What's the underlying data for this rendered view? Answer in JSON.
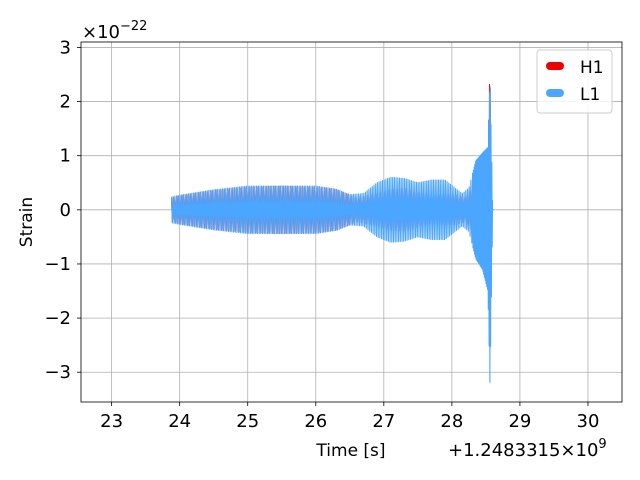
{
  "chart_data": {
    "type": "line",
    "xlabel": "Time [s]",
    "ylabel": "Strain",
    "x_offset_label": "+1.2483315×10",
    "x_offset_exp": "9",
    "y_scale_label": "×10",
    "y_scale_exp": "−22",
    "xlim": [
      22.55,
      30.5
    ],
    "ylim": [
      -3.55,
      3.1
    ],
    "xticks": [
      23,
      24,
      25,
      26,
      27,
      28,
      29,
      30
    ],
    "xtick_labels": [
      "23",
      "24",
      "25",
      "26",
      "27",
      "28",
      "29",
      "30"
    ],
    "yticks": [
      -3,
      -2,
      -1,
      0,
      1,
      2,
      3
    ],
    "ytick_labels": [
      "−3",
      "−2",
      "−1",
      "0",
      "1",
      "2",
      "3"
    ],
    "grid": true,
    "legend_position": "top-right",
    "series": [
      {
        "name": "H1",
        "color": "#ee0000",
        "envelope_x": [
          23.88,
          24.0,
          24.5,
          25.0,
          25.5,
          26.0,
          26.3,
          26.6,
          26.9,
          27.1,
          27.3,
          27.5,
          27.7,
          27.9,
          28.05,
          28.2,
          28.35,
          28.45,
          28.53,
          28.56,
          28.58
        ],
        "envelope_upper": [
          0.22,
          0.26,
          0.36,
          0.42,
          0.44,
          0.42,
          0.38,
          0.22,
          0.3,
          0.38,
          0.4,
          0.32,
          0.26,
          0.28,
          0.28,
          0.22,
          0.55,
          0.8,
          1.0,
          2.75,
          0.02
        ],
        "envelope_lower": [
          -0.22,
          -0.26,
          -0.36,
          -0.42,
          -0.44,
          -0.42,
          -0.38,
          -0.22,
          -0.3,
          -0.38,
          -0.4,
          -0.32,
          -0.26,
          -0.28,
          -0.28,
          -0.22,
          -0.55,
          -0.9,
          -1.3,
          -2.0,
          -0.02
        ]
      },
      {
        "name": "L1",
        "color": "#4ba6ff",
        "envelope_x": [
          23.88,
          24.0,
          24.5,
          25.0,
          25.5,
          26.0,
          26.3,
          26.5,
          26.7,
          26.9,
          27.1,
          27.3,
          27.5,
          27.7,
          27.9,
          28.05,
          28.15,
          28.25,
          28.35,
          28.45,
          28.53,
          28.56,
          28.6
        ],
        "envelope_upper": [
          0.24,
          0.27,
          0.37,
          0.44,
          0.44,
          0.44,
          0.38,
          0.28,
          0.3,
          0.5,
          0.6,
          0.58,
          0.5,
          0.55,
          0.55,
          0.4,
          0.3,
          0.4,
          0.9,
          1.05,
          1.15,
          2.5,
          0.02
        ],
        "envelope_lower": [
          -0.24,
          -0.27,
          -0.37,
          -0.44,
          -0.44,
          -0.44,
          -0.38,
          -0.28,
          -0.3,
          -0.5,
          -0.6,
          -0.58,
          -0.5,
          -0.55,
          -0.55,
          -0.4,
          -0.3,
          -0.4,
          -0.9,
          -1.1,
          -1.5,
          -3.3,
          -0.02
        ]
      }
    ]
  }
}
